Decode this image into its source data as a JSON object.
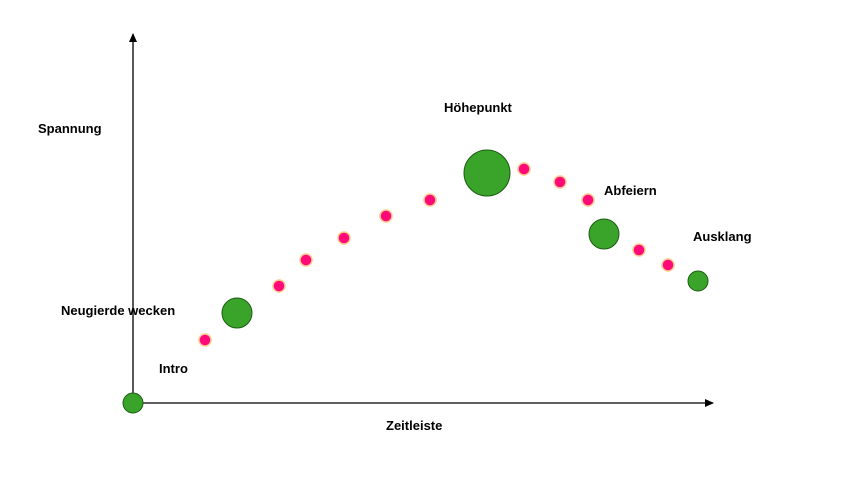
{
  "axes": {
    "y_label": "Spannung",
    "x_label": "Zeitleiste"
  },
  "stages": [
    {
      "id": "intro",
      "label": "Intro"
    },
    {
      "id": "curiosity",
      "label": "Neugierde wecken"
    },
    {
      "id": "climax",
      "label": "Höhepunkt"
    },
    {
      "id": "celebrate",
      "label": "Abfeiern"
    },
    {
      "id": "outro",
      "label": "Ausklang"
    }
  ],
  "colors": {
    "milestone_fill": "#3aa32a",
    "milestone_stroke": "#1d5c14",
    "dot_fill": "#ff0a78",
    "dot_stroke": "#ffc890",
    "axis": "#000000"
  }
}
